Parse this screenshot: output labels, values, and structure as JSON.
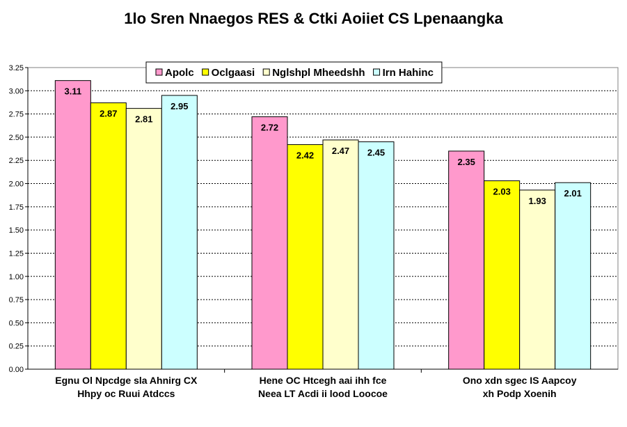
{
  "chart_data": {
    "type": "bar",
    "title": "1lo Sren Nnaegos RES & Ctki Aoiiet CS Lpenaangka",
    "categories": [
      [
        "Egnu Ol Npcdge sla Ahnirg CX",
        "Hhpy oc Ruui Atdccs"
      ],
      [
        "Hene OC Htcegh aai ihh fce",
        "Neea LT Acdi ii lood Loocoe"
      ],
      [
        "Ono xdn sgec IS Aapcoy",
        "xh Podp Xoenih"
      ]
    ],
    "series": [
      {
        "name": "Apolc",
        "color": "#ff99cc",
        "values": [
          3.11,
          2.72,
          2.35
        ]
      },
      {
        "name": "Oclgaasi",
        "color": "#ffff00",
        "values": [
          2.87,
          2.42,
          2.03
        ]
      },
      {
        "name": "Nglshpl Mheedshh",
        "color": "#ffffcc",
        "values": [
          2.81,
          2.47,
          1.93
        ]
      },
      {
        "name": "Irn Hahinc",
        "color": "#ccffff",
        "values": [
          2.95,
          2.45,
          2.01
        ]
      }
    ],
    "ylim": [
      0,
      3.25
    ],
    "yticks": [
      "0.00",
      "0.25",
      "0.50",
      "0.75",
      "1.00",
      "1.25",
      "1.50",
      "1.75",
      "2.00",
      "2.25",
      "2.50",
      "2.75",
      "3.00",
      "3.25"
    ],
    "grid": true,
    "legend_position": "top-center",
    "xlabel": "",
    "ylabel": ""
  }
}
